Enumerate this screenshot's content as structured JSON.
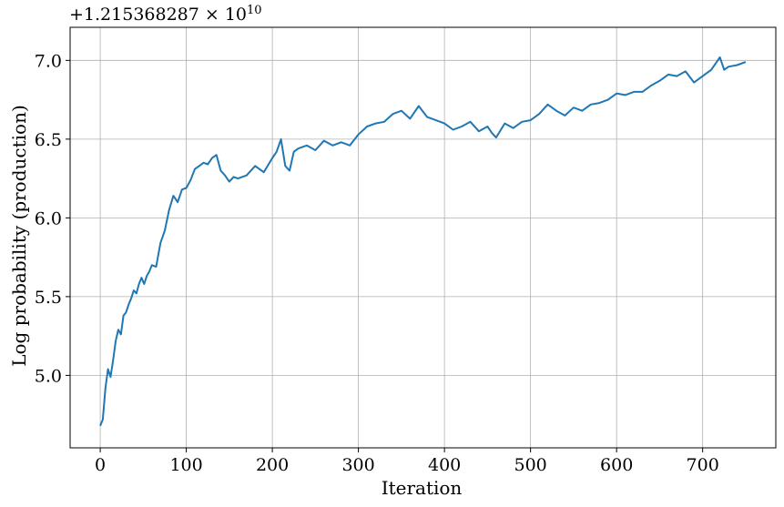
{
  "chart_data": {
    "type": "line",
    "title": "",
    "offset_text": "+1.215368287 × 10",
    "offset_exponent": "10",
    "xlabel": "Iteration",
    "ylabel": "Log probability (production)",
    "xlim": [
      -35,
      785
    ],
    "ylim": [
      4.54,
      7.21
    ],
    "xticks": [
      0,
      100,
      200,
      300,
      400,
      500,
      600,
      700
    ],
    "xtick_labels": [
      "0",
      "100",
      "200",
      "300",
      "400",
      "500",
      "600",
      "700"
    ],
    "yticks": [
      5.0,
      5.5,
      6.0,
      6.5,
      7.0
    ],
    "ytick_labels": [
      "5.0",
      "5.5",
      "6.0",
      "6.5",
      "7.0"
    ],
    "grid": true,
    "line_color": "#1f77b4",
    "series": [
      {
        "x": [
          0,
          3,
          6,
          9,
          12,
          15,
          18,
          21,
          24,
          27,
          30,
          33,
          36,
          39,
          42,
          45,
          48,
          51,
          54,
          57,
          60,
          65,
          70,
          75,
          80,
          85,
          90,
          95,
          100,
          105,
          110,
          115,
          120,
          125,
          130,
          135,
          140,
          145,
          150,
          155,
          160,
          170,
          180,
          190,
          200,
          205,
          210,
          215,
          220,
          225,
          230,
          240,
          250,
          260,
          270,
          280,
          290,
          300,
          310,
          320,
          330,
          340,
          350,
          360,
          370,
          380,
          390,
          400,
          410,
          420,
          430,
          440,
          450,
          455,
          460,
          470,
          480,
          490,
          500,
          510,
          520,
          530,
          540,
          550,
          560,
          570,
          580,
          590,
          600,
          610,
          620,
          630,
          640,
          650,
          660,
          670,
          680,
          690,
          700,
          710,
          720,
          725,
          730,
          740,
          750
        ],
        "y": [
          4.68,
          4.72,
          4.92,
          5.04,
          4.99,
          5.1,
          5.22,
          5.29,
          5.26,
          5.38,
          5.4,
          5.45,
          5.49,
          5.54,
          5.52,
          5.58,
          5.62,
          5.58,
          5.63,
          5.66,
          5.7,
          5.69,
          5.84,
          5.92,
          6.05,
          6.14,
          6.1,
          6.18,
          6.19,
          6.24,
          6.31,
          6.33,
          6.35,
          6.34,
          6.38,
          6.4,
          6.3,
          6.27,
          6.23,
          6.26,
          6.25,
          6.27,
          6.33,
          6.29,
          6.38,
          6.42,
          6.5,
          6.33,
          6.3,
          6.42,
          6.44,
          6.46,
          6.43,
          6.49,
          6.46,
          6.48,
          6.46,
          6.53,
          6.58,
          6.6,
          6.61,
          6.66,
          6.68,
          6.63,
          6.71,
          6.64,
          6.62,
          6.6,
          6.56,
          6.58,
          6.61,
          6.55,
          6.58,
          6.54,
          6.51,
          6.6,
          6.57,
          6.61,
          6.62,
          6.66,
          6.72,
          6.68,
          6.65,
          6.7,
          6.68,
          6.72,
          6.73,
          6.75,
          6.79,
          6.78,
          6.8,
          6.8,
          6.84,
          6.87,
          6.91,
          6.9,
          6.93,
          6.86,
          6.9,
          6.94,
          7.02,
          6.94,
          6.96,
          6.97,
          6.99
        ]
      }
    ]
  }
}
